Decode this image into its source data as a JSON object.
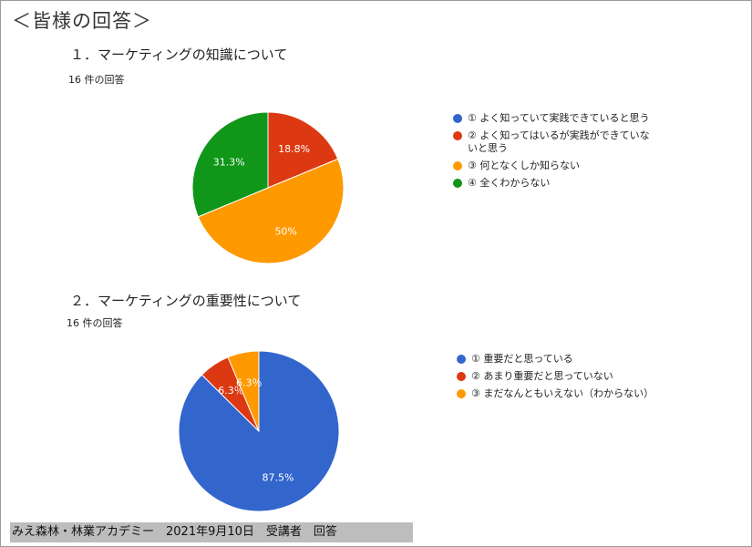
{
  "slide_title": "＜皆様の回答＞",
  "footer_text": "みえ森林・林業アカデミー　2021年9月10日　受講者　回答",
  "chart_data": [
    {
      "type": "pie",
      "title": "１．マーケティングの知識について",
      "subtitle": "16 件の回答",
      "labels": [
        "① よく知っていて実践できていると思う",
        "② よく知ってはいるが実践ができていないと思う",
        "③ 何となくしか知らない",
        "④ 全くわからない"
      ],
      "values": [
        0,
        18.8,
        50,
        31.3
      ],
      "data_labels": [
        "",
        "18.8%",
        "50%",
        "31.3%"
      ],
      "colors": [
        "#3366cc",
        "#dc3912",
        "#ff9900",
        "#109618"
      ],
      "legend": "right"
    },
    {
      "type": "pie",
      "title": "２．マーケティングの重要性について",
      "subtitle": "16 件の回答",
      "labels": [
        "① 重要だと思っている",
        "② あまり重要だと思っていない",
        "③ まだなんともいえない（わからない）"
      ],
      "values": [
        87.5,
        6.3,
        6.3
      ],
      "data_labels": [
        "87.5%",
        "6.3％",
        "6.3％"
      ],
      "colors": [
        "#3366cc",
        "#dc3912",
        "#ff9900"
      ],
      "legend": "right"
    }
  ]
}
